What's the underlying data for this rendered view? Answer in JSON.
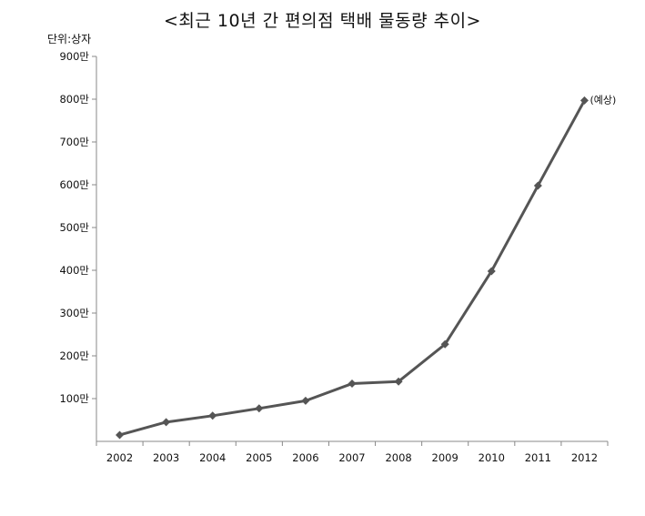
{
  "chart_data": {
    "type": "line",
    "title": "<최근 10년 간 편의점 택배 물동량 추이>",
    "unit_label": "단위:상자",
    "categories": [
      "2002",
      "2003",
      "2004",
      "2005",
      "2006",
      "2007",
      "2008",
      "2009",
      "2010",
      "2011",
      "2012"
    ],
    "series": [
      {
        "values": [
          15,
          45,
          60,
          77,
          95,
          135,
          140,
          227,
          398,
          598,
          797
        ]
      }
    ],
    "y_ticks": [
      100,
      200,
      300,
      400,
      500,
      600,
      700,
      800,
      900
    ],
    "y_tick_labels": [
      "100만",
      "200만",
      "300만",
      "400만",
      "500만",
      "600만",
      "700만",
      "800만",
      "900만"
    ],
    "ylim": [
      0,
      900
    ],
    "annotation": {
      "category": "2012",
      "text": "(예상)"
    },
    "grid": false,
    "colors": {
      "line": "#555555",
      "marker": "#555555",
      "axis": "#888888"
    }
  }
}
